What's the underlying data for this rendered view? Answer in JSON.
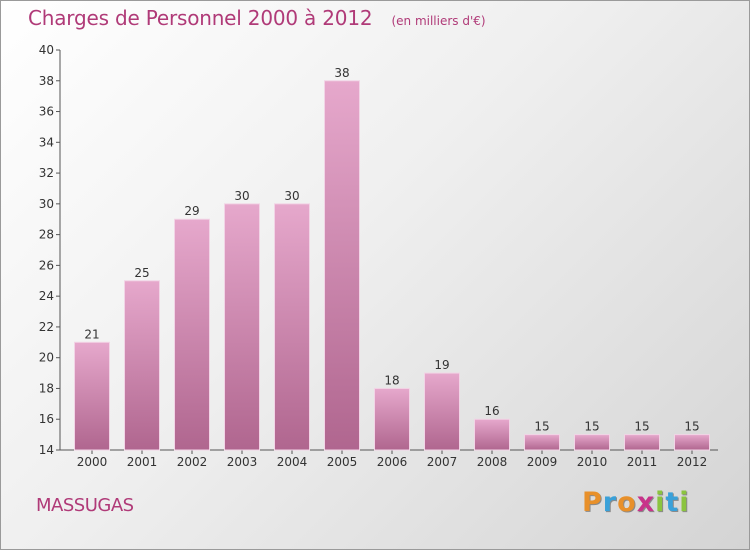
{
  "header": {
    "title": "Charges de Personnel 2000 à 2012",
    "unit_note": "(en milliers d'€)"
  },
  "footer": {
    "town": "MASSUGAS",
    "logo": [
      "P",
      "r",
      "o",
      "x",
      "i",
      "t",
      "i"
    ],
    "logo_colors": [
      "#e8902a",
      "#3aa1d9",
      "#e8902a",
      "#c8338a",
      "#8bc43f",
      "#3aa1d9",
      "#8bc43f"
    ]
  },
  "chart_data": {
    "type": "bar",
    "title": "Charges de Personnel 2000 à 2012",
    "subtitle": "(en milliers d'€)",
    "xlabel": "",
    "ylabel": "",
    "categories": [
      "2000",
      "2001",
      "2002",
      "2003",
      "2004",
      "2005",
      "2006",
      "2007",
      "2008",
      "2009",
      "2010",
      "2011",
      "2012"
    ],
    "values": [
      21,
      25,
      29,
      30,
      30,
      38,
      18,
      19,
      16,
      15,
      15,
      15,
      15
    ],
    "ylim": [
      14,
      40
    ],
    "yticks": [
      14,
      16,
      18,
      20,
      22,
      24,
      26,
      28,
      30,
      32,
      34,
      36,
      38,
      40
    ],
    "grid": false,
    "bar_color_top": "#e6a8cc",
    "bar_color_bottom": "#b0668f"
  }
}
